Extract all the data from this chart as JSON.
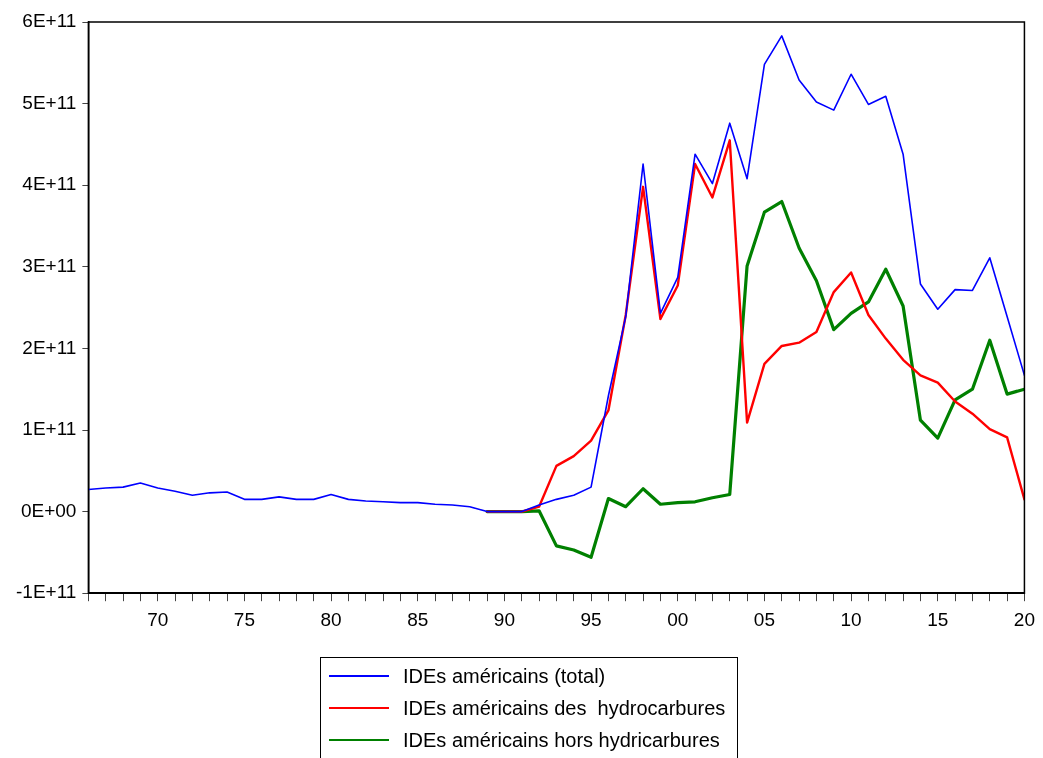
{
  "chart_data": {
    "type": "line",
    "x": [
      1966,
      1967,
      1968,
      1969,
      1970,
      1971,
      1972,
      1973,
      1974,
      1975,
      1976,
      1977,
      1978,
      1979,
      1980,
      1981,
      1982,
      1983,
      1984,
      1985,
      1986,
      1987,
      1988,
      1989,
      1990,
      1991,
      1992,
      1993,
      1994,
      1995,
      1996,
      1997,
      1998,
      1999,
      2000,
      2001,
      2002,
      2003,
      2004,
      2005,
      2006,
      2007,
      2008,
      2009,
      2010,
      2011,
      2012,
      2013,
      2014,
      2015,
      2016,
      2017,
      2018,
      2019,
      2020
    ],
    "series": [
      {
        "name": "IDEs américains (total)",
        "color": "#0000ff",
        "values": [
          27000000000.0,
          29000000000.0,
          30000000000.0,
          35000000000.0,
          29000000000.0,
          25000000000.0,
          20000000000.0,
          23000000000.0,
          24000000000.0,
          15000000000.0,
          15000000000.0,
          18000000000.0,
          15000000000.0,
          15000000000.0,
          21000000000.0,
          15000000000.0,
          13000000000.0,
          12000000000.0,
          11000000000.0,
          11000000000.0,
          9000000000.0,
          8000000000.0,
          6000000000.0,
          0,
          0,
          0,
          8000000000.0,
          15000000000.0,
          20000000000.0,
          30000000000.0,
          142000000000.0,
          239000000000.0,
          426000000000.0,
          243000000000.0,
          287000000000.0,
          438000000000.0,
          402000000000.0,
          476000000000.0,
          408000000000.0,
          548000000000.0,
          583000000000.0,
          529000000000.0,
          502000000000.0,
          492000000000.0,
          536000000000.0,
          499000000000.0,
          509000000000.0,
          438000000000.0,
          279000000000.0,
          248000000000.0,
          272000000000.0,
          271000000000.0,
          311000000000.0,
          239000000000.0,
          167000000000.0
        ]
      },
      {
        "name": "IDEs américains des  hydrocarbures",
        "color": "#ff0000",
        "values": [
          null,
          null,
          null,
          null,
          null,
          null,
          null,
          null,
          null,
          null,
          null,
          null,
          null,
          null,
          null,
          null,
          null,
          null,
          null,
          null,
          null,
          null,
          null,
          0,
          0,
          0,
          6000000000.0,
          56000000000.0,
          68000000000.0,
          87000000000.0,
          124000000000.0,
          241000000000.0,
          398000000000.0,
          236000000000.0,
          277000000000.0,
          426000000000.0,
          385000000000.0,
          455000000000.0,
          109000000000.0,
          181000000000.0,
          203000000000.0,
          207000000000.0,
          220000000000.0,
          269000000000.0,
          293000000000.0,
          241000000000.0,
          212000000000.0,
          186000000000.0,
          167000000000.0,
          158000000000.0,
          135000000000.0,
          120000000000.0,
          101000000000.0,
          91000000000.0,
          15000000000.0
        ]
      },
      {
        "name": "IDEs américains hors hydricarbures",
        "color": "#008000",
        "values": [
          null,
          null,
          null,
          null,
          null,
          null,
          null,
          null,
          null,
          null,
          null,
          null,
          null,
          null,
          null,
          null,
          null,
          null,
          null,
          null,
          null,
          null,
          null,
          0,
          0,
          0,
          1000000000.0,
          -42000000000.0,
          -47000000000.0,
          -56000000000.0,
          16000000000.0,
          6000000000.0,
          28000000000.0,
          9000000000.0,
          11000000000.0,
          12000000000.0,
          17000000000.0,
          21000000000.0,
          301000000000.0,
          367000000000.0,
          380000000000.0,
          323000000000.0,
          283000000000.0,
          223000000000.0,
          243000000000.0,
          257000000000.0,
          297000000000.0,
          252000000000.0,
          112000000000.0,
          90000000000.0,
          137000000000.0,
          150000000000.0,
          210000000000.0,
          144000000000.0,
          150000000000.0
        ]
      }
    ],
    "xlim": [
      1966,
      2020
    ],
    "xticks": [
      {
        "value": 1966,
        "label": null
      },
      {
        "value": 1967,
        "label": null
      },
      {
        "value": 1968,
        "label": null
      },
      {
        "value": 1969,
        "label": null
      },
      {
        "value": 1970,
        "label": "70"
      },
      {
        "value": 1971,
        "label": null
      },
      {
        "value": 1972,
        "label": null
      },
      {
        "value": 1973,
        "label": null
      },
      {
        "value": 1974,
        "label": null
      },
      {
        "value": 1975,
        "label": "75"
      },
      {
        "value": 1976,
        "label": null
      },
      {
        "value": 1977,
        "label": null
      },
      {
        "value": 1978,
        "label": null
      },
      {
        "value": 1979,
        "label": null
      },
      {
        "value": 1980,
        "label": "80"
      },
      {
        "value": 1981,
        "label": null
      },
      {
        "value": 1982,
        "label": null
      },
      {
        "value": 1983,
        "label": null
      },
      {
        "value": 1984,
        "label": null
      },
      {
        "value": 1985,
        "label": "85"
      },
      {
        "value": 1986,
        "label": null
      },
      {
        "value": 1987,
        "label": null
      },
      {
        "value": 1988,
        "label": null
      },
      {
        "value": 1989,
        "label": null
      },
      {
        "value": 1990,
        "label": "90"
      },
      {
        "value": 1991,
        "label": null
      },
      {
        "value": 1992,
        "label": null
      },
      {
        "value": 1993,
        "label": null
      },
      {
        "value": 1994,
        "label": null
      },
      {
        "value": 1995,
        "label": "95"
      },
      {
        "value": 1996,
        "label": null
      },
      {
        "value": 1997,
        "label": null
      },
      {
        "value": 1998,
        "label": null
      },
      {
        "value": 1999,
        "label": null
      },
      {
        "value": 2000,
        "label": "00"
      },
      {
        "value": 2001,
        "label": null
      },
      {
        "value": 2002,
        "label": null
      },
      {
        "value": 2003,
        "label": null
      },
      {
        "value": 2004,
        "label": null
      },
      {
        "value": 2005,
        "label": "05"
      },
      {
        "value": 2006,
        "label": null
      },
      {
        "value": 2007,
        "label": null
      },
      {
        "value": 2008,
        "label": null
      },
      {
        "value": 2009,
        "label": null
      },
      {
        "value": 2010,
        "label": "10"
      },
      {
        "value": 2011,
        "label": null
      },
      {
        "value": 2012,
        "label": null
      },
      {
        "value": 2013,
        "label": null
      },
      {
        "value": 2014,
        "label": null
      },
      {
        "value": 2015,
        "label": "15"
      },
      {
        "value": 2016,
        "label": null
      },
      {
        "value": 2017,
        "label": null
      },
      {
        "value": 2018,
        "label": null
      },
      {
        "value": 2019,
        "label": null
      },
      {
        "value": 2020,
        "label": "20"
      }
    ],
    "ylim": [
      -100000000000.0,
      600000000000.0
    ],
    "yticks": [
      {
        "value": -100000000000.0,
        "label": "-1E+11"
      },
      {
        "value": 0,
        "label": "0E+00"
      },
      {
        "value": 100000000000.0,
        "label": "1E+11"
      },
      {
        "value": 200000000000.0,
        "label": "2E+11"
      },
      {
        "value": 300000000000.0,
        "label": "3E+11"
      },
      {
        "value": 400000000000.0,
        "label": "4E+11"
      },
      {
        "value": 500000000000.0,
        "label": "5E+11"
      },
      {
        "value": 600000000000.0,
        "label": "6E+11"
      }
    ],
    "grid": false,
    "legend": "bottom",
    "marker": "none",
    "line_style": "solid"
  }
}
